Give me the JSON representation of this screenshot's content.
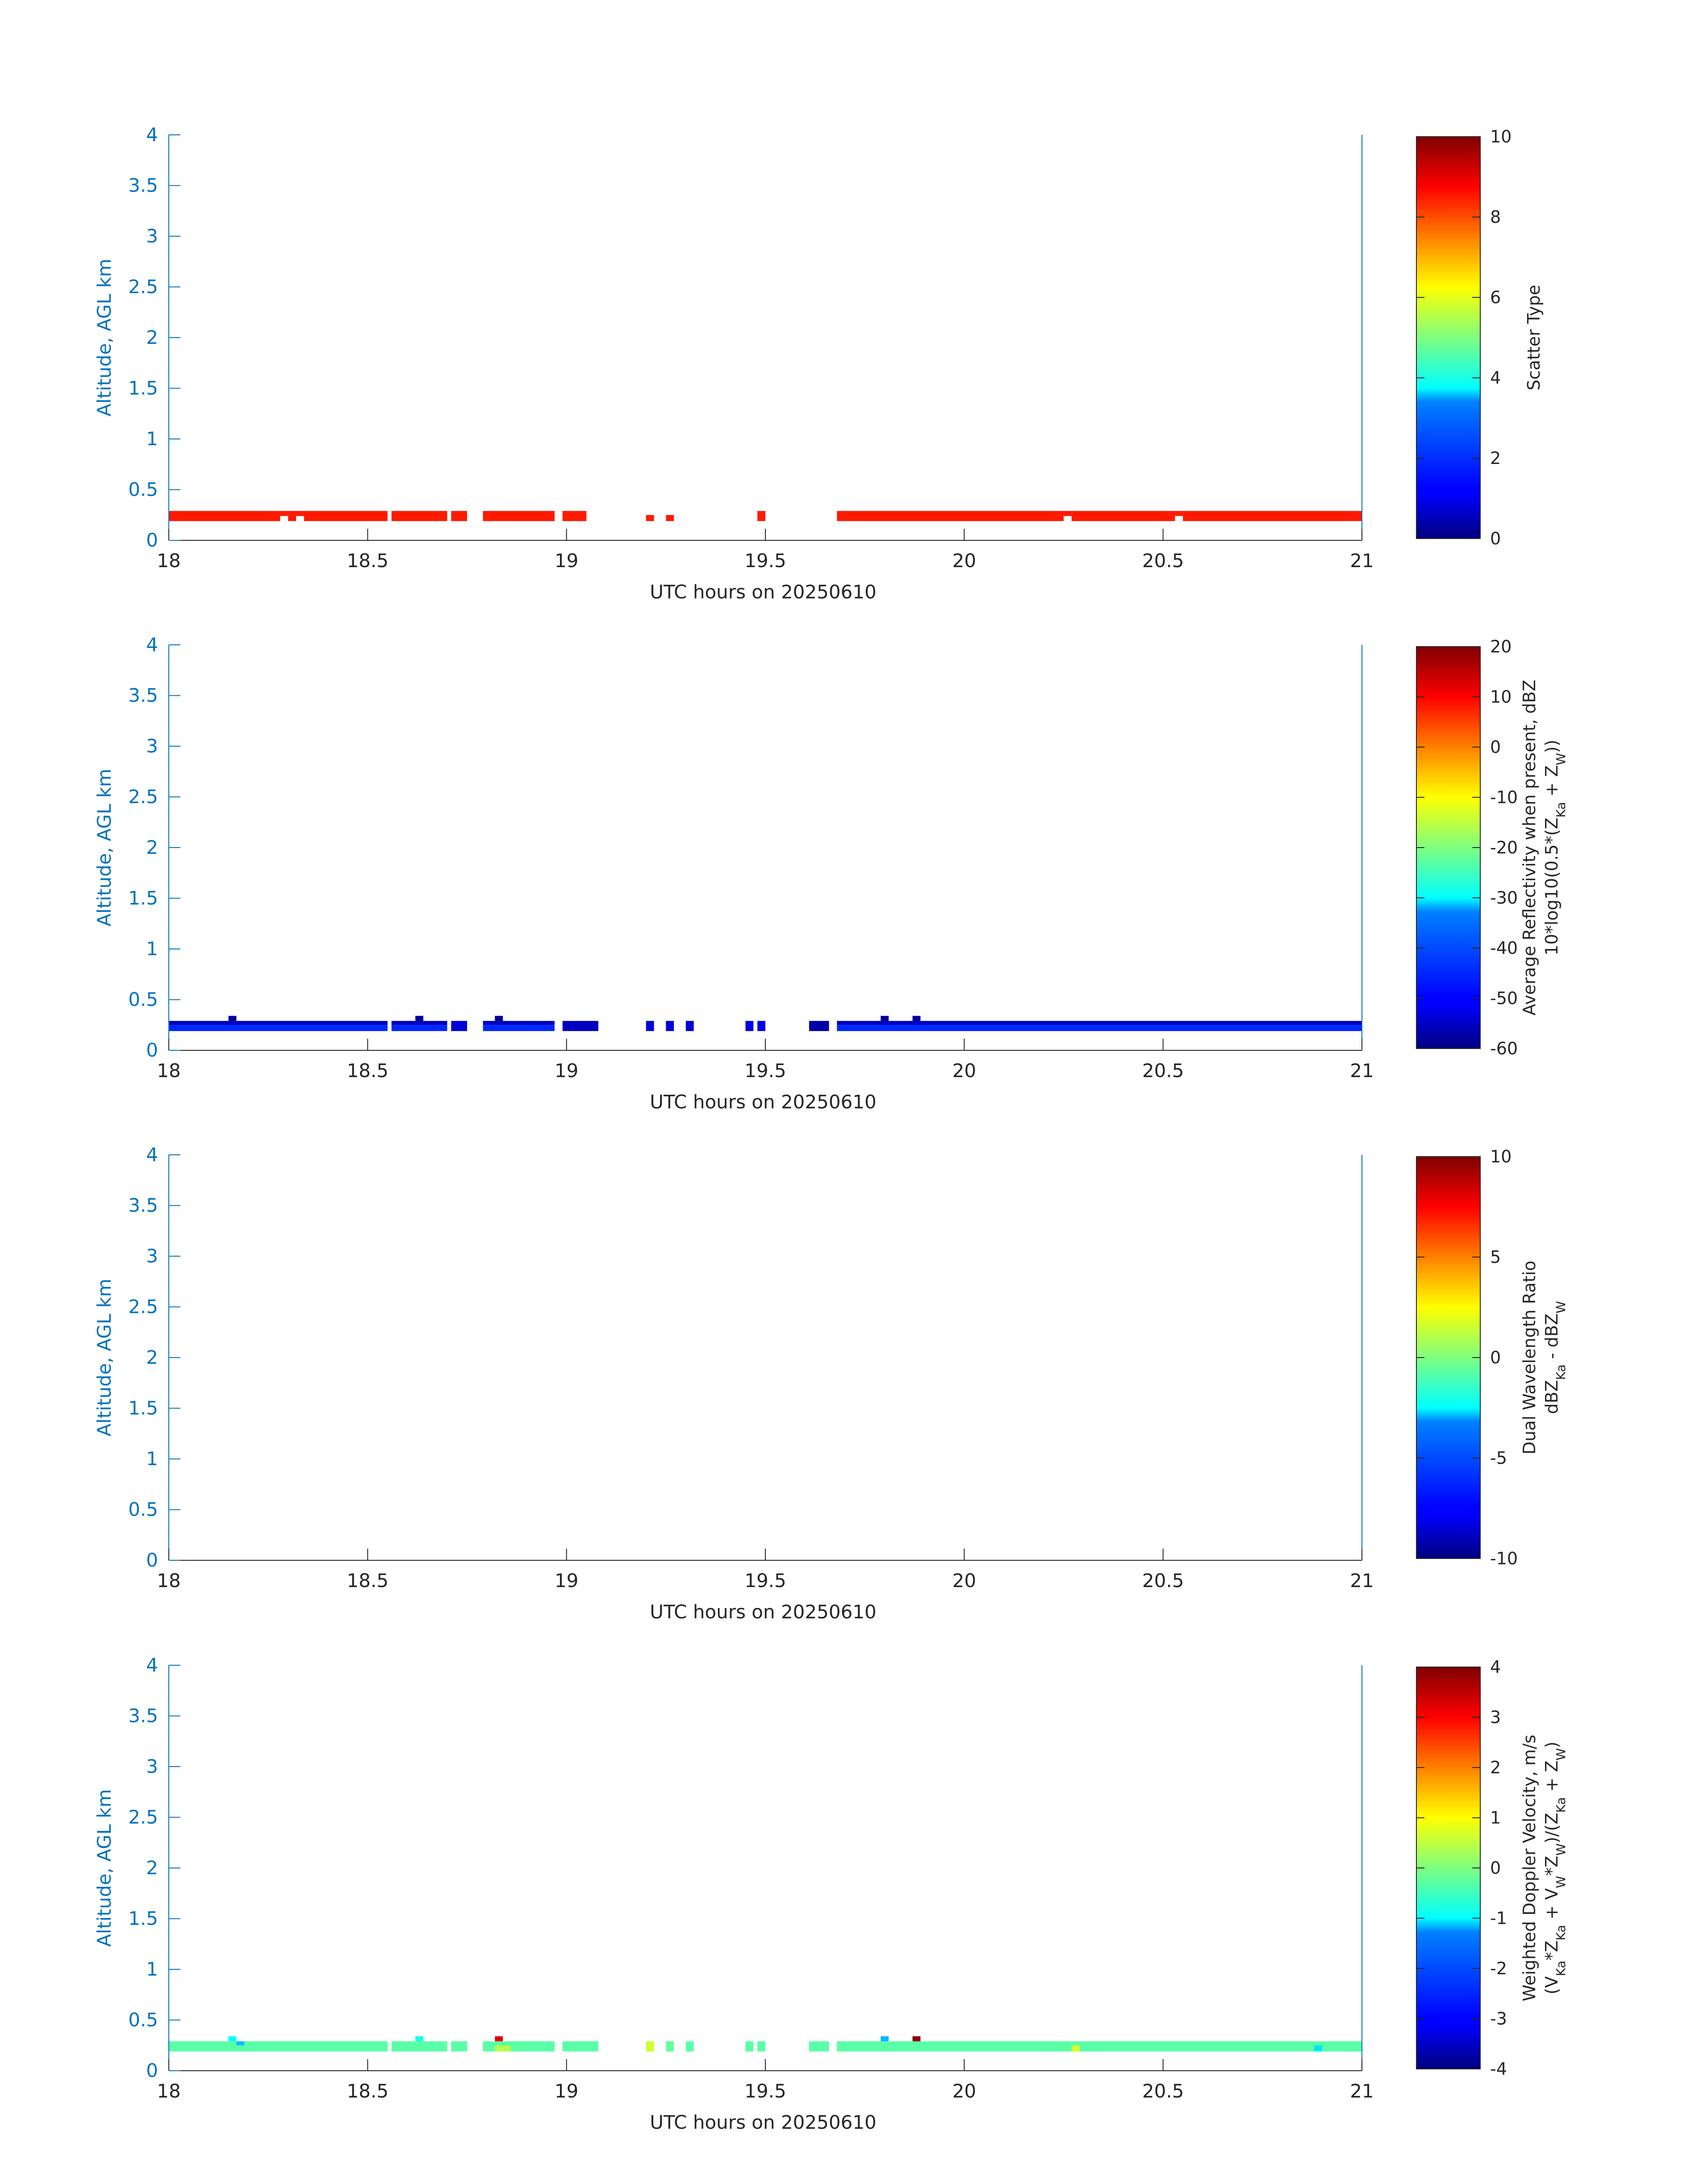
{
  "chart_data": [
    {
      "type": "heatmap",
      "xlabel": "UTC hours on 20250610",
      "ylabel": "Altitude, AGL km",
      "xlim": [
        18,
        21
      ],
      "ylim": [
        0,
        4
      ],
      "xticks": [
        "18",
        "18.5",
        "19",
        "19.5",
        "20",
        "20.5",
        "21"
      ],
      "yticks": [
        "0",
        "0.5",
        "1",
        "1.5",
        "2",
        "2.5",
        "3",
        "3.5",
        "4"
      ],
      "colorbar": {
        "label_lines": [
          "Scatter Type"
        ],
        "ticks": [
          "0",
          "2",
          "4",
          "6",
          "8",
          "10"
        ],
        "range": [
          0,
          10
        ],
        "colormap": "jet"
      },
      "cells": [
        {
          "x0": 18.0,
          "x1": 18.28,
          "y0": 0.19,
          "y1": 0.29,
          "value": 8.5
        },
        {
          "x0": 18.28,
          "x1": 18.3,
          "y0": 0.24,
          "y1": 0.29,
          "value": 8.5
        },
        {
          "x0": 18.3,
          "x1": 18.32,
          "y0": 0.19,
          "y1": 0.29,
          "value": 8.5
        },
        {
          "x0": 18.32,
          "x1": 18.34,
          "y0": 0.24,
          "y1": 0.29,
          "value": 8.5
        },
        {
          "x0": 18.34,
          "x1": 18.55,
          "y0": 0.19,
          "y1": 0.29,
          "value": 8.5
        },
        {
          "x0": 18.56,
          "x1": 18.7,
          "y0": 0.19,
          "y1": 0.29,
          "value": 8.5
        },
        {
          "x0": 18.71,
          "x1": 18.75,
          "y0": 0.19,
          "y1": 0.29,
          "value": 8.5
        },
        {
          "x0": 18.79,
          "x1": 18.97,
          "y0": 0.19,
          "y1": 0.29,
          "value": 8.5
        },
        {
          "x0": 18.99,
          "x1": 19.05,
          "y0": 0.19,
          "y1": 0.29,
          "value": 8.5
        },
        {
          "x0": 19.2,
          "x1": 19.22,
          "y0": 0.19,
          "y1": 0.25,
          "value": 8.5
        },
        {
          "x0": 19.25,
          "x1": 19.27,
          "y0": 0.19,
          "y1": 0.25,
          "value": 8.5
        },
        {
          "x0": 19.48,
          "x1": 19.5,
          "y0": 0.19,
          "y1": 0.29,
          "value": 8.5
        },
        {
          "x0": 19.68,
          "x1": 20.25,
          "y0": 0.19,
          "y1": 0.29,
          "value": 8.5
        },
        {
          "x0": 20.25,
          "x1": 20.27,
          "y0": 0.24,
          "y1": 0.29,
          "value": 8.5
        },
        {
          "x0": 20.27,
          "x1": 20.53,
          "y0": 0.19,
          "y1": 0.29,
          "value": 8.5
        },
        {
          "x0": 20.53,
          "x1": 20.55,
          "y0": 0.24,
          "y1": 0.29,
          "value": 8.5
        },
        {
          "x0": 20.55,
          "x1": 21.0,
          "y0": 0.19,
          "y1": 0.29,
          "value": 8.5
        }
      ]
    },
    {
      "type": "heatmap",
      "xlabel": "UTC hours on 20250610",
      "ylabel": "Altitude, AGL km",
      "xlim": [
        18,
        21
      ],
      "ylim": [
        0,
        4
      ],
      "xticks": [
        "18",
        "18.5",
        "19",
        "19.5",
        "20",
        "20.5",
        "21"
      ],
      "yticks": [
        "0",
        "0.5",
        "1",
        "1.5",
        "2",
        "2.5",
        "3",
        "3.5",
        "4"
      ],
      "colorbar": {
        "label_lines": [
          "Average Reflectivity when present, dBZ",
          "10*log10(0.5*(Z_Ka + Z_W))"
        ],
        "ticks": [
          "-60",
          "-50",
          "-40",
          "-30",
          "-20",
          "-10",
          "0",
          "10",
          "20"
        ],
        "range": [
          -60,
          20
        ],
        "colormap": "jet"
      },
      "cells": [
        {
          "x0": 18.0,
          "x1": 18.55,
          "y0": 0.25,
          "y1": 0.29,
          "value": -55
        },
        {
          "x0": 18.0,
          "x1": 18.55,
          "y0": 0.19,
          "y1": 0.25,
          "value": -47
        },
        {
          "x0": 18.56,
          "x1": 18.7,
          "y0": 0.25,
          "y1": 0.29,
          "value": -55
        },
        {
          "x0": 18.56,
          "x1": 18.7,
          "y0": 0.19,
          "y1": 0.25,
          "value": -47
        },
        {
          "x0": 18.71,
          "x1": 18.75,
          "y0": 0.19,
          "y1": 0.29,
          "value": -53
        },
        {
          "x0": 18.79,
          "x1": 18.97,
          "y0": 0.25,
          "y1": 0.29,
          "value": -55
        },
        {
          "x0": 18.79,
          "x1": 18.97,
          "y0": 0.19,
          "y1": 0.25,
          "value": -47
        },
        {
          "x0": 18.99,
          "x1": 19.08,
          "y0": 0.19,
          "y1": 0.29,
          "value": -55
        },
        {
          "x0": 19.2,
          "x1": 19.22,
          "y0": 0.19,
          "y1": 0.29,
          "value": -53
        },
        {
          "x0": 19.25,
          "x1": 19.27,
          "y0": 0.19,
          "y1": 0.29,
          "value": -53
        },
        {
          "x0": 19.3,
          "x1": 19.32,
          "y0": 0.19,
          "y1": 0.29,
          "value": -53
        },
        {
          "x0": 19.45,
          "x1": 19.47,
          "y0": 0.19,
          "y1": 0.29,
          "value": -52
        },
        {
          "x0": 19.48,
          "x1": 19.5,
          "y0": 0.19,
          "y1": 0.29,
          "value": -52
        },
        {
          "x0": 19.61,
          "x1": 19.66,
          "y0": 0.19,
          "y1": 0.29,
          "value": -57
        },
        {
          "x0": 19.68,
          "x1": 21.0,
          "y0": 0.25,
          "y1": 0.29,
          "value": -55
        },
        {
          "x0": 19.68,
          "x1": 21.0,
          "y0": 0.19,
          "y1": 0.25,
          "value": -47
        },
        {
          "x0": 18.15,
          "x1": 18.17,
          "y0": 0.29,
          "y1": 0.34,
          "value": -58
        },
        {
          "x0": 18.62,
          "x1": 18.64,
          "y0": 0.29,
          "y1": 0.34,
          "value": -58
        },
        {
          "x0": 18.82,
          "x1": 18.84,
          "y0": 0.29,
          "y1": 0.34,
          "value": -58
        },
        {
          "x0": 19.79,
          "x1": 19.81,
          "y0": 0.29,
          "y1": 0.34,
          "value": -58
        },
        {
          "x0": 19.87,
          "x1": 19.89,
          "y0": 0.29,
          "y1": 0.34,
          "value": -58
        }
      ]
    },
    {
      "type": "heatmap",
      "xlabel": "UTC hours on 20250610",
      "ylabel": "Altitude, AGL km",
      "xlim": [
        18,
        21
      ],
      "ylim": [
        0,
        4
      ],
      "xticks": [
        "18",
        "18.5",
        "19",
        "19.5",
        "20",
        "20.5",
        "21"
      ],
      "yticks": [
        "0",
        "0.5",
        "1",
        "1.5",
        "2",
        "2.5",
        "3",
        "3.5",
        "4"
      ],
      "colorbar": {
        "label_lines": [
          "Dual Wavelength Ratio",
          "dBZ_Ka - dBZ_W"
        ],
        "ticks": [
          "-10",
          "-5",
          "0",
          "5",
          "10"
        ],
        "range": [
          -10,
          10
        ],
        "colormap": "jet"
      },
      "cells": []
    },
    {
      "type": "heatmap",
      "xlabel": "UTC hours on 20250610",
      "ylabel": "Altitude, AGL km",
      "xlim": [
        18,
        21
      ],
      "ylim": [
        0,
        4
      ],
      "xticks": [
        "18",
        "18.5",
        "19",
        "19.5",
        "20",
        "20.5",
        "21"
      ],
      "yticks": [
        "0",
        "0.5",
        "1",
        "1.5",
        "2",
        "2.5",
        "3",
        "3.5",
        "4"
      ],
      "colorbar": {
        "label_lines": [
          "Weighted Doppler Velocity, m/s",
          "(V_Ka*Z_Ka + V_W*Z_W)/(Z_Ka + Z_W)"
        ],
        "ticks": [
          "-4",
          "-3",
          "-2",
          "-1",
          "0",
          "1",
          "2",
          "3",
          "4"
        ],
        "range": [
          -4,
          4
        ],
        "colormap": "jet"
      },
      "cells": [
        {
          "x0": 18.0,
          "x1": 18.55,
          "y0": 0.19,
          "y1": 0.29,
          "value": -0.3
        },
        {
          "x0": 18.56,
          "x1": 18.7,
          "y0": 0.19,
          "y1": 0.29,
          "value": -0.3
        },
        {
          "x0": 18.71,
          "x1": 18.75,
          "y0": 0.19,
          "y1": 0.29,
          "value": -0.3
        },
        {
          "x0": 18.79,
          "x1": 18.97,
          "y0": 0.19,
          "y1": 0.29,
          "value": -0.3
        },
        {
          "x0": 18.99,
          "x1": 19.08,
          "y0": 0.19,
          "y1": 0.29,
          "value": -0.3
        },
        {
          "x0": 19.2,
          "x1": 19.22,
          "y0": 0.19,
          "y1": 0.29,
          "value": 0.6
        },
        {
          "x0": 19.25,
          "x1": 19.27,
          "y0": 0.19,
          "y1": 0.29,
          "value": -0.2
        },
        {
          "x0": 19.3,
          "x1": 19.32,
          "y0": 0.19,
          "y1": 0.29,
          "value": -0.3
        },
        {
          "x0": 19.45,
          "x1": 19.47,
          "y0": 0.19,
          "y1": 0.29,
          "value": -0.3
        },
        {
          "x0": 19.48,
          "x1": 19.5,
          "y0": 0.19,
          "y1": 0.29,
          "value": -0.3
        },
        {
          "x0": 19.61,
          "x1": 19.66,
          "y0": 0.19,
          "y1": 0.29,
          "value": -0.3
        },
        {
          "x0": 19.68,
          "x1": 21.0,
          "y0": 0.19,
          "y1": 0.29,
          "value": -0.3
        },
        {
          "x0": 18.15,
          "x1": 18.17,
          "y0": 0.29,
          "y1": 0.34,
          "value": -1.0
        },
        {
          "x0": 18.17,
          "x1": 18.19,
          "y0": 0.25,
          "y1": 0.29,
          "value": -1.5
        },
        {
          "x0": 18.62,
          "x1": 18.64,
          "y0": 0.29,
          "y1": 0.34,
          "value": -0.8
        },
        {
          "x0": 18.82,
          "x1": 18.84,
          "y0": 0.29,
          "y1": 0.34,
          "value": 3.2
        },
        {
          "x0": 18.82,
          "x1": 18.86,
          "y0": 0.19,
          "y1": 0.25,
          "value": 0.4
        },
        {
          "x0": 19.79,
          "x1": 19.81,
          "y0": 0.29,
          "y1": 0.34,
          "value": -1.6
        },
        {
          "x0": 19.87,
          "x1": 19.89,
          "y0": 0.29,
          "y1": 0.34,
          "value": 3.9
        },
        {
          "x0": 20.27,
          "x1": 20.29,
          "y0": 0.19,
          "y1": 0.25,
          "value": 0.7
        },
        {
          "x0": 20.88,
          "x1": 20.9,
          "y0": 0.19,
          "y1": 0.25,
          "value": -1.2
        }
      ]
    }
  ]
}
